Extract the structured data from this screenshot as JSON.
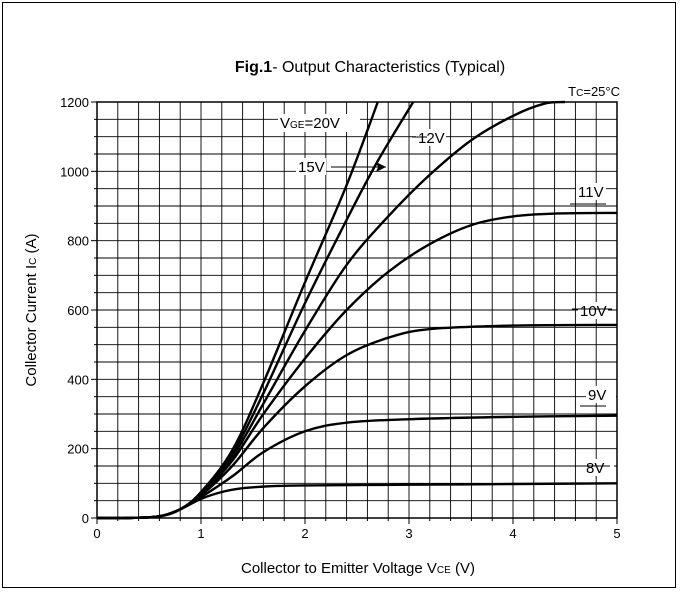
{
  "chart_data": {
    "type": "line",
    "title_bold": "Fig.1",
    "title_rest": "- Output Characteristics (Typical)",
    "condition": {
      "main": "T",
      "sub": "C",
      "rest": "=25°C"
    },
    "xlabel": {
      "main": "Collector to Emitter Voltage V",
      "sub": "CE",
      "rest": "  (V)"
    },
    "ylabel": {
      "main": "Collector Current I",
      "sub": "C",
      "rest": "  (A)"
    },
    "xlim": [
      0,
      5
    ],
    "ylim": [
      0,
      1200
    ],
    "x_ticks": [
      "0",
      "1",
      "2",
      "3",
      "4",
      "5"
    ],
    "y_ticks": [
      "0",
      "200",
      "400",
      "600",
      "800",
      "1000",
      "1200"
    ],
    "grid": true,
    "series": [
      {
        "name": "8V",
        "points": [
          [
            0,
            0
          ],
          [
            0.3,
            0
          ],
          [
            0.6,
            5
          ],
          [
            0.8,
            25
          ],
          [
            1.0,
            55
          ],
          [
            1.2,
            75
          ],
          [
            1.4,
            86
          ],
          [
            1.7,
            92
          ],
          [
            2.0,
            94
          ],
          [
            3.0,
            96
          ],
          [
            4.0,
            98
          ],
          [
            5.0,
            100
          ]
        ]
      },
      {
        "name": "9V",
        "points": [
          [
            0,
            0
          ],
          [
            0.3,
            0
          ],
          [
            0.6,
            5
          ],
          [
            0.8,
            25
          ],
          [
            1.0,
            60
          ],
          [
            1.3,
            120
          ],
          [
            1.6,
            190
          ],
          [
            2.0,
            250
          ],
          [
            2.4,
            275
          ],
          [
            3.0,
            285
          ],
          [
            4.0,
            292
          ],
          [
            5.0,
            295
          ]
        ]
      },
      {
        "name": "10V",
        "points": [
          [
            0,
            0
          ],
          [
            0.3,
            0
          ],
          [
            0.6,
            5
          ],
          [
            0.8,
            25
          ],
          [
            1.0,
            65
          ],
          [
            1.3,
            150
          ],
          [
            1.6,
            260
          ],
          [
            2.0,
            380
          ],
          [
            2.4,
            470
          ],
          [
            2.8,
            520
          ],
          [
            3.2,
            545
          ],
          [
            4.0,
            555
          ],
          [
            5.0,
            557
          ]
        ]
      },
      {
        "name": "11V",
        "points": [
          [
            0,
            0
          ],
          [
            0.3,
            0
          ],
          [
            0.6,
            5
          ],
          [
            0.8,
            25
          ],
          [
            1.0,
            68
          ],
          [
            1.3,
            165
          ],
          [
            1.6,
            300
          ],
          [
            2.0,
            460
          ],
          [
            2.4,
            600
          ],
          [
            2.8,
            710
          ],
          [
            3.2,
            790
          ],
          [
            3.6,
            845
          ],
          [
            4.0,
            870
          ],
          [
            4.4,
            878
          ],
          [
            5.0,
            880
          ]
        ]
      },
      {
        "name": "12V",
        "points": [
          [
            0,
            0
          ],
          [
            0.3,
            0
          ],
          [
            0.6,
            5
          ],
          [
            0.8,
            25
          ],
          [
            1.0,
            70
          ],
          [
            1.3,
            175
          ],
          [
            1.6,
            330
          ],
          [
            2.0,
            540
          ],
          [
            2.4,
            730
          ],
          [
            2.8,
            870
          ],
          [
            3.2,
            990
          ],
          [
            3.6,
            1090
          ],
          [
            4.0,
            1160
          ],
          [
            4.3,
            1195
          ],
          [
            4.5,
            1200
          ]
        ]
      },
      {
        "name": "15V",
        "points": [
          [
            0,
            0
          ],
          [
            0.3,
            0
          ],
          [
            0.6,
            5
          ],
          [
            0.8,
            25
          ],
          [
            1.0,
            72
          ],
          [
            1.3,
            185
          ],
          [
            1.6,
            360
          ],
          [
            2.0,
            620
          ],
          [
            2.4,
            860
          ],
          [
            2.7,
            1030
          ],
          [
            3.04,
            1200
          ]
        ]
      },
      {
        "name": "20V",
        "points": [
          [
            0,
            0
          ],
          [
            0.3,
            0
          ],
          [
            0.6,
            5
          ],
          [
            0.8,
            25
          ],
          [
            1.0,
            75
          ],
          [
            1.3,
            195
          ],
          [
            1.6,
            390
          ],
          [
            2.0,
            680
          ],
          [
            2.4,
            960
          ],
          [
            2.7,
            1200
          ]
        ]
      }
    ],
    "curve_labels": [
      {
        "text": "V",
        "sub": "GE",
        "rest": "=20V"
      },
      {
        "text": "15V"
      },
      {
        "text": "12V"
      },
      {
        "text": "11V"
      },
      {
        "text": "10V"
      },
      {
        "text": "9V"
      },
      {
        "text": "8V"
      }
    ]
  }
}
